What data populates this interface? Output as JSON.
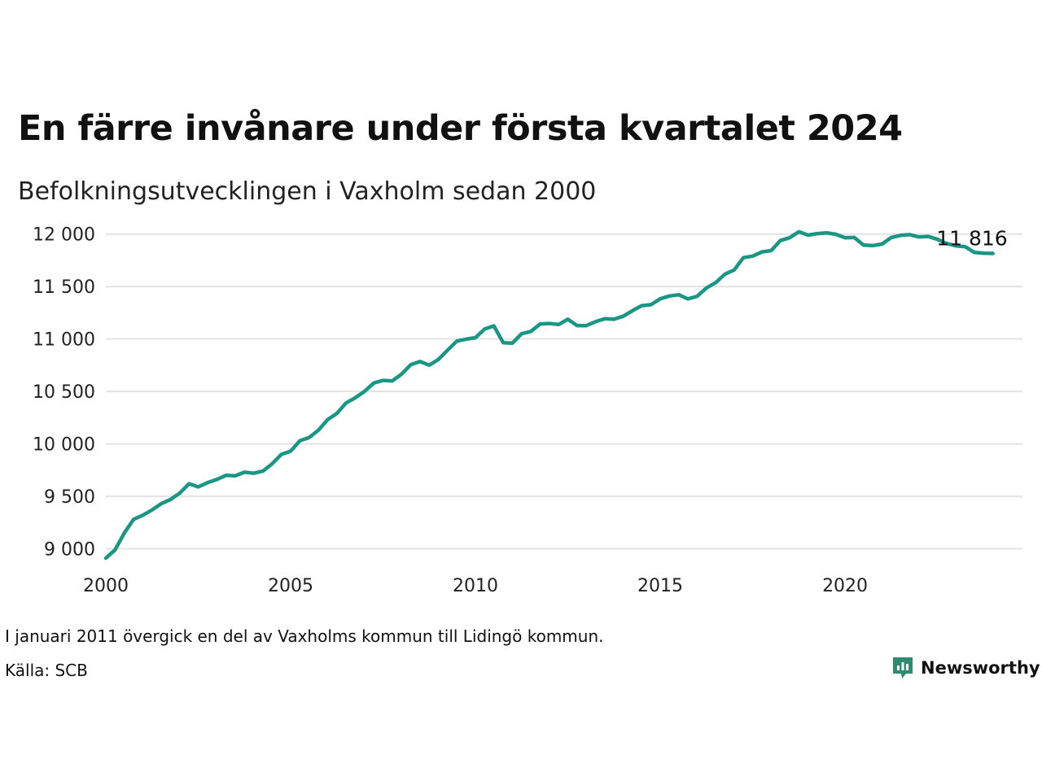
{
  "title": "En färre invånare under första kvartalet 2024",
  "subtitle": "Befolkningsutvecklingen i Vaxholm sedan 2000",
  "note": "I januari 2011 övergick en del av Vaxholms kommun till Lidingö kommun.",
  "source": "Källa: SCB",
  "brand": {
    "name": "Newsworthy",
    "color": "#2e8b6e",
    "icon": "chart-bubble-icon"
  },
  "colors": {
    "line": "#1a9685",
    "grid": "#e3e3e3",
    "text": "#111111"
  },
  "chart_data": {
    "type": "line",
    "title": "En färre invånare under första kvartalet 2024",
    "subtitle": "Befolkningsutvecklingen i Vaxholm sedan 2000",
    "xlabel": "",
    "ylabel": "",
    "xlim": [
      2000,
      2024.8
    ],
    "ylim": [
      8880,
      12060
    ],
    "grid": true,
    "y_ticks": [
      9000,
      9500,
      10000,
      10500,
      11000,
      11500,
      12000
    ],
    "y_tick_labels": [
      "9 000",
      "9 500",
      "10 000",
      "10 500",
      "11 000",
      "11 500",
      "12 000"
    ],
    "x_ticks": [
      2000,
      2005,
      2010,
      2015,
      2020
    ],
    "x_tick_labels": [
      "2000",
      "2005",
      "2010",
      "2015",
      "2020"
    ],
    "end_label": "11 816",
    "series": [
      {
        "x": [
          2000.0,
          2000.25,
          2000.5,
          2000.75,
          2001.0,
          2001.25,
          2001.5,
          2001.75,
          2002.0,
          2002.25,
          2002.5,
          2002.75,
          2003.0,
          2003.25,
          2003.5,
          2003.75,
          2004.0,
          2004.25,
          2004.5,
          2004.75,
          2005.0,
          2005.25,
          2005.5,
          2005.75,
          2006.0,
          2006.25,
          2006.5,
          2006.75,
          2007.0,
          2007.25,
          2007.5,
          2007.75,
          2008.0,
          2008.25,
          2008.5,
          2008.75,
          2009.0,
          2009.25,
          2009.5,
          2009.75,
          2010.0,
          2010.25,
          2010.5,
          2010.75,
          2011.0,
          2011.25,
          2011.5,
          2011.75,
          2012.0,
          2012.25,
          2012.5,
          2012.75,
          2013.0,
          2013.25,
          2013.5,
          2013.75,
          2014.0,
          2014.25,
          2014.5,
          2014.75,
          2015.0,
          2015.25,
          2015.5,
          2015.75,
          2016.0,
          2016.25,
          2016.5,
          2016.75,
          2017.0,
          2017.25,
          2017.5,
          2017.75,
          2018.0,
          2018.25,
          2018.5,
          2018.75,
          2019.0,
          2019.25,
          2019.5,
          2019.75,
          2020.0,
          2020.25,
          2020.5,
          2020.75,
          2021.0,
          2021.25,
          2021.5,
          2021.75,
          2022.0,
          2022.25,
          2022.5,
          2022.75,
          2023.0,
          2023.25,
          2023.5,
          2023.75,
          2024.0
        ],
        "values": [
          8910,
          8990,
          9150,
          9280,
          9320,
          9370,
          9430,
          9470,
          9530,
          9620,
          9590,
          9630,
          9660,
          9700,
          9695,
          9730,
          9720,
          9740,
          9810,
          9900,
          9930,
          10030,
          10060,
          10130,
          10230,
          10290,
          10390,
          10440,
          10500,
          10580,
          10605,
          10600,
          10665,
          10755,
          10785,
          10750,
          10805,
          10895,
          10980,
          10998,
          11012,
          11095,
          11125,
          10965,
          10960,
          11050,
          11072,
          11143,
          11148,
          11138,
          11188,
          11128,
          11128,
          11165,
          11193,
          11188,
          11217,
          11270,
          11318,
          11327,
          11383,
          11410,
          11422,
          11382,
          11408,
          11487,
          11537,
          11618,
          11658,
          11775,
          11790,
          11830,
          11843,
          11938,
          11965,
          12022,
          11990,
          12005,
          12012,
          11998,
          11965,
          11968,
          11895,
          11890,
          11905,
          11968,
          11988,
          11995,
          11972,
          11978,
          11950,
          11910,
          11888,
          11880,
          11825,
          11817,
          11816
        ]
      }
    ]
  }
}
